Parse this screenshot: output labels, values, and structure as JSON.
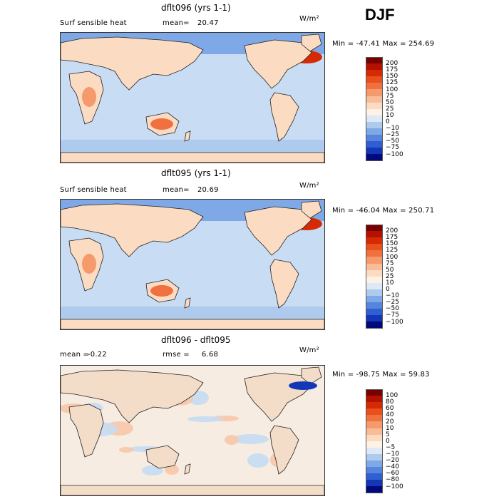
{
  "season": "DJF",
  "panels": [
    {
      "title": "dflt096 (yrs 1-1)",
      "variable": "Surf sensible heat",
      "stat_left": "mean=",
      "stat_left_value": "20.47",
      "units": "W/m²",
      "minmax": "Min = -47.41  Max = 254.69",
      "levels": [
        "200",
        "175",
        "150",
        "125",
        "100",
        "75",
        "50",
        "25",
        "10",
        "0",
        "−10",
        "−25",
        "−50",
        "−75",
        "−100"
      ],
      "colors": [
        "#7a0000",
        "#b31200",
        "#d62a05",
        "#e8501c",
        "#f07040",
        "#f59a6c",
        "#f8bc98",
        "#fbdcc2",
        "#fdf2e4",
        "#dde9f7",
        "#aecbee",
        "#7fa8e6",
        "#5685dd",
        "#2f5fd2",
        "#1437b8",
        "#000a7a"
      ]
    },
    {
      "title": "dflt095 (yrs 1-1)",
      "variable": "Surf sensible heat",
      "stat_left": "mean=",
      "stat_left_value": "20.69",
      "units": "W/m²",
      "minmax": "Min = -46.04  Max = 250.71",
      "levels": [
        "200",
        "175",
        "150",
        "125",
        "100",
        "75",
        "50",
        "25",
        "10",
        "0",
        "−10",
        "−25",
        "−50",
        "−75",
        "−100"
      ],
      "colors": [
        "#7a0000",
        "#b31200",
        "#d62a05",
        "#e8501c",
        "#f07040",
        "#f59a6c",
        "#f8bc98",
        "#fbdcc2",
        "#fdf2e4",
        "#dde9f7",
        "#aecbee",
        "#7fa8e6",
        "#5685dd",
        "#2f5fd2",
        "#1437b8",
        "#000a7a"
      ]
    },
    {
      "title": "dflt096 - dflt095",
      "stat_left": "mean =",
      "stat_left_value": "-0.22",
      "stat_right": "rmse =",
      "stat_right_value": "6.68",
      "units": "W/m²",
      "minmax": "Min = -98.75  Max =  59.83",
      "levels": [
        "100",
        "80",
        "60",
        "40",
        "20",
        "10",
        "5",
        "0",
        "−5",
        "−10",
        "−20",
        "−40",
        "−60",
        "−80",
        "−100"
      ],
      "colors": [
        "#7a0000",
        "#b31200",
        "#d62a05",
        "#e8501c",
        "#f07040",
        "#f59a6c",
        "#f8bc98",
        "#fbdcc2",
        "#fdf2e4",
        "#dde9f7",
        "#aecbee",
        "#7fa8e6",
        "#5685dd",
        "#2f5fd2",
        "#1437b8",
        "#000a7a"
      ]
    }
  ],
  "chart_data": [
    {
      "type": "heatmap",
      "title": "dflt096 (yrs 1-1)",
      "subtitle": "Surf sensible heat",
      "mean": 20.47,
      "min": -47.41,
      "max": 254.69,
      "units": "W/m²",
      "season": "DJF",
      "contour_levels": [
        -100,
        -75,
        -50,
        -25,
        -10,
        0,
        10,
        25,
        50,
        75,
        100,
        125,
        150,
        175,
        200
      ]
    },
    {
      "type": "heatmap",
      "title": "dflt095 (yrs 1-1)",
      "subtitle": "Surf sensible heat",
      "mean": 20.69,
      "min": -46.04,
      "max": 250.71,
      "units": "W/m²",
      "season": "DJF",
      "contour_levels": [
        -100,
        -75,
        -50,
        -25,
        -10,
        0,
        10,
        25,
        50,
        75,
        100,
        125,
        150,
        175,
        200
      ]
    },
    {
      "type": "heatmap",
      "title": "dflt096 - dflt095",
      "mean": -0.22,
      "rmse": 6.68,
      "min": -98.75,
      "max": 59.83,
      "units": "W/m²",
      "season": "DJF",
      "contour_levels": [
        -100,
        -80,
        -60,
        -40,
        -20,
        -10,
        -5,
        0,
        5,
        10,
        20,
        40,
        60,
        80,
        100
      ]
    }
  ]
}
